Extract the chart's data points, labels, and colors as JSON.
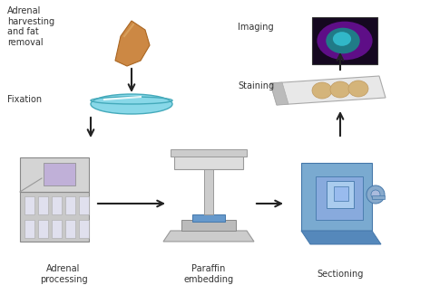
{
  "bg_color": "#ffffff",
  "text_color": "#333333",
  "labels": {
    "adrenal": "Adrenal\nharvesting\nand fat\nremoval",
    "fixation": "Fixation",
    "adrenal_processing": "Adrenal\nprocessing",
    "paraffin": "Paraffin\nembedding",
    "sectioning": "Sectioning",
    "staining": "Staining",
    "imaging": "Imaging"
  },
  "figsize": [
    4.74,
    3.15
  ],
  "dpi": 100
}
